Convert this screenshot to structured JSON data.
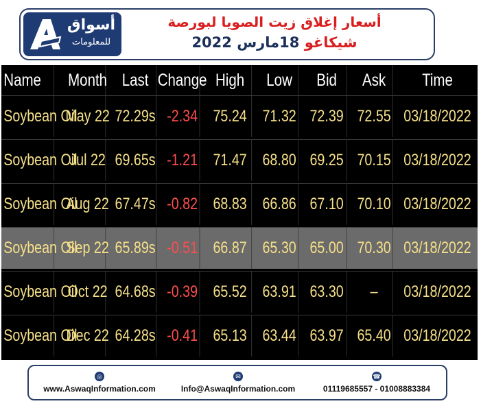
{
  "header": {
    "logo_ar": "أسواق",
    "logo_ar2": "للمعلومات",
    "title": "أسعار إغلاق زيت الصويا لبورصة",
    "subtitle_city": "شيكاغو",
    "subtitle_date": "18مارس 2022"
  },
  "table": {
    "columns": [
      "Name",
      "Month",
      "Last",
      "Change",
      "High",
      "Low",
      "Bid",
      "Ask",
      "Time"
    ],
    "rows": [
      {
        "name": "Soybean Oil",
        "month": "May 22",
        "last": "72.29s",
        "change": "-2.34",
        "high": "75.24",
        "low": "71.32",
        "bid": "72.39",
        "ask": "72.55",
        "time": "03/18/2022"
      },
      {
        "name": "Soybean Oil",
        "month": "Jul 22",
        "last": "69.65s",
        "change": "-1.21",
        "high": "71.47",
        "low": "68.80",
        "bid": "69.25",
        "ask": "70.15",
        "time": "03/18/2022"
      },
      {
        "name": "Soybean Oil",
        "month": "Aug 22",
        "last": "67.47s",
        "change": "-0.82",
        "high": "68.83",
        "low": "66.86",
        "bid": "67.10",
        "ask": "70.10",
        "time": "03/18/2022"
      },
      {
        "name": "Soybean Oil",
        "month": "Sep 22",
        "last": "65.89s",
        "change": "-0.51",
        "high": "66.87",
        "low": "65.30",
        "bid": "65.00",
        "ask": "70.30",
        "time": "03/18/2022"
      },
      {
        "name": "Soybean Oil",
        "month": "Oct 22",
        "last": "64.68s",
        "change": "-0.39",
        "high": "65.52",
        "low": "63.91",
        "bid": "63.30",
        "ask": "–",
        "time": "03/18/2022"
      },
      {
        "name": "Soybean Oil",
        "month": "Dec 22",
        "last": "64.28s",
        "change": "-0.41",
        "high": "65.13",
        "low": "63.44",
        "bid": "63.97",
        "ask": "65.40",
        "time": "03/18/2022"
      }
    ],
    "highlight_row": 3
  },
  "footer": {
    "website": "www.AswaqInformation.com",
    "email": "Info@AswaqInformation.com",
    "phone": "01119685557 - 01008883384"
  },
  "colors": {
    "brand": "#1f3b73",
    "accent_red": "#d81e1e",
    "cell_text": "#f6e089",
    "change_text": "#ff4d4d"
  }
}
